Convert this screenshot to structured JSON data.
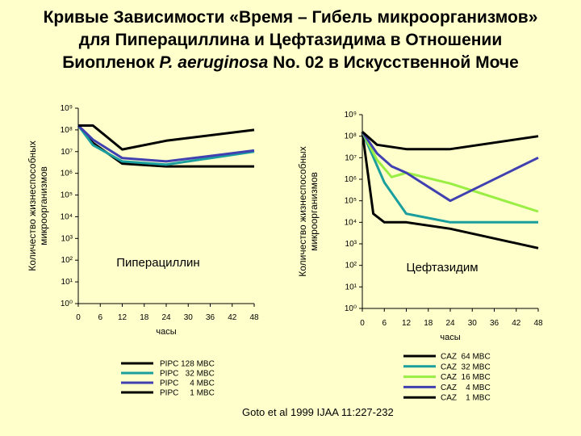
{
  "title": {
    "line1": "Кривые Зависимости «Время – Гибель микроорганизмов»",
    "line2": "для Пиперациллина и Цефтазидима в Отношении",
    "line3_pre": "Биопленок ",
    "line3_italic": "P. aeruginosa",
    "line3_post": " No. 02 в Искусственной Моче"
  },
  "citation": "Goto et al 1999 IJAA 11:227-232",
  "chart_data": [
    {
      "type": "line",
      "inner_label": "Пиперациллин",
      "ylabel": "Количество жизнеспособных микроорганизмов",
      "xlabel": "часы",
      "x_ticks": [
        0,
        6,
        12,
        18,
        24,
        30,
        36,
        42,
        48
      ],
      "y_ticks": [
        0,
        1,
        2,
        3,
        4,
        5,
        6,
        7,
        8,
        9
      ],
      "y_tick_labels": [
        "10⁰",
        "10¹",
        "10²",
        "10³",
        "10⁴",
        "10⁵",
        "10⁶",
        "10⁷",
        "10⁸",
        "10⁹"
      ],
      "xlim": [
        0,
        48
      ],
      "ylim": [
        0,
        9
      ],
      "y_scale": "log10",
      "legend_position": "bottom",
      "series": [
        {
          "name": "PIPC 128 MBC",
          "color": "#000000",
          "x": [
            0,
            4,
            12,
            24,
            48
          ],
          "y": [
            8.2,
            7.4,
            6.45,
            6.32,
            6.32
          ]
        },
        {
          "name": "PIPC   32 MBC",
          "color": "#1a9e9e",
          "x": [
            0,
            4,
            12,
            24,
            48
          ],
          "y": [
            8.2,
            7.3,
            6.55,
            6.4,
            7.0
          ]
        },
        {
          "name": "PIPC     4 MBC",
          "color": "#4040b0",
          "x": [
            0,
            4,
            12,
            24,
            48
          ],
          "y": [
            8.2,
            7.55,
            6.7,
            6.55,
            7.05
          ]
        },
        {
          "name": "PIPC     1 MBC",
          "color": "#000000",
          "x": [
            0,
            4,
            12,
            24,
            48
          ],
          "y": [
            8.2,
            8.2,
            7.1,
            7.5,
            8.0
          ]
        }
      ]
    },
    {
      "type": "line",
      "inner_label": "Цефтазидим",
      "ylabel": "Количество жизнеспособных микроорганизмов",
      "xlabel": "часы",
      "x_ticks": [
        0,
        6,
        12,
        18,
        24,
        30,
        36,
        42,
        48
      ],
      "y_ticks": [
        0,
        1,
        2,
        3,
        4,
        5,
        6,
        7,
        8,
        9
      ],
      "y_tick_labels": [
        "10⁰",
        "10¹",
        "10²",
        "10³",
        "10⁴",
        "10⁵",
        "10⁶",
        "10⁷",
        "10⁸",
        "10⁹"
      ],
      "xlim": [
        0,
        48
      ],
      "ylim": [
        0,
        9
      ],
      "y_scale": "log10",
      "legend_position": "bottom",
      "series": [
        {
          "name": "CAZ  64 MBC",
          "color": "#000000",
          "x": [
            0,
            3,
            6,
            12,
            24,
            48
          ],
          "y": [
            8.2,
            4.4,
            4.0,
            4.0,
            3.7,
            2.8
          ]
        },
        {
          "name": "CAZ  32 MBC",
          "color": "#1a9e9e",
          "x": [
            0,
            6,
            12,
            24,
            48
          ],
          "y": [
            8.2,
            5.85,
            4.4,
            4.0,
            4.0
          ]
        },
        {
          "name": "CAZ  16 MBC",
          "color": "#99ee44",
          "x": [
            0,
            4,
            8,
            12,
            24,
            48
          ],
          "y": [
            8.2,
            6.9,
            6.1,
            6.3,
            5.8,
            4.5
          ]
        },
        {
          "name": "CAZ    4 MBC",
          "color": "#4040b0",
          "x": [
            0,
            4,
            8,
            12,
            24,
            48
          ],
          "y": [
            8.2,
            7.2,
            6.6,
            6.3,
            5.0,
            7.0
          ]
        },
        {
          "name": "CAZ    1 MBC",
          "color": "#000000",
          "x": [
            0,
            4,
            12,
            24,
            48
          ],
          "y": [
            8.2,
            7.6,
            7.4,
            7.4,
            8.0
          ]
        }
      ]
    }
  ]
}
